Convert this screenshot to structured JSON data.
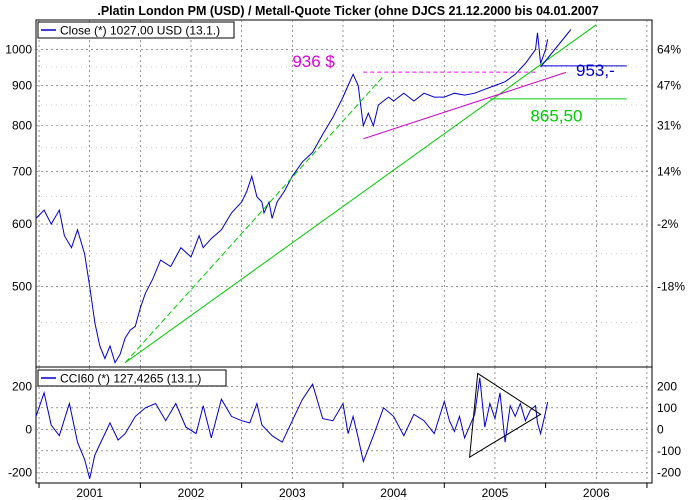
{
  "chart_data": [
    {
      "type": "line",
      "title": ".Platin London PM (USD) / Metall-Quote Ticker (ohne DJCS 21.12.2000 bis 04.01.2007",
      "legend": {
        "label": "Close (*) 1027,00 USD (13.1.)",
        "placement": "top-left"
      },
      "y_scale": "log",
      "ylim": [
        395,
        1090
      ],
      "y_ticks_left": [
        "1000",
        "900",
        "800",
        "700",
        "600",
        "500"
      ],
      "y_ticks_right": [
        "64%",
        "47%",
        "31%",
        "14%",
        "-2%",
        "-18%"
      ],
      "x_ticks": [
        "2001",
        "2002",
        "2003",
        "2004",
        "2005",
        "2006"
      ],
      "xlim": [
        2000.97,
        2007.05
      ],
      "grid": true,
      "series": [
        {
          "color": "#0000cc",
          "x": [
            2000.97,
            2001.05,
            2001.12,
            2001.2,
            2001.25,
            2001.32,
            2001.38,
            2001.45,
            2001.5,
            2001.55,
            2001.6,
            2001.65,
            2001.7,
            2001.75,
            2001.8,
            2001.85,
            2001.9,
            2001.95,
            2002.0,
            2002.05,
            2002.12,
            2002.2,
            2002.3,
            2002.4,
            2002.5,
            2002.58,
            2002.62,
            2002.7,
            2002.8,
            2002.9,
            2003.0,
            2003.05,
            2003.1,
            2003.15,
            2003.2,
            2003.22,
            2003.27,
            2003.3,
            2003.35,
            2003.42,
            2003.5,
            2003.6,
            2003.7,
            2003.8,
            2003.9,
            2004.0,
            2004.05,
            2004.1,
            2004.15,
            2004.2,
            2004.25,
            2004.3,
            2004.35,
            2004.4,
            2004.45,
            2004.5,
            2004.6,
            2004.7,
            2004.8,
            2004.9,
            2005.0,
            2005.1,
            2005.2,
            2005.3,
            2005.4,
            2005.5,
            2005.6,
            2005.7,
            2005.8,
            2005.9,
            2005.92,
            2005.95,
            2006.0,
            2006.02
          ],
          "values": [
            610,
            625,
            600,
            625,
            580,
            560,
            590,
            550,
            500,
            450,
            420,
            405,
            420,
            400,
            410,
            430,
            440,
            445,
            470,
            490,
            510,
            540,
            530,
            560,
            545,
            580,
            560,
            575,
            590,
            620,
            640,
            660,
            690,
            650,
            640,
            620,
            640,
            610,
            640,
            660,
            690,
            720,
            740,
            780,
            820,
            870,
            900,
            930,
            900,
            800,
            830,
            800,
            850,
            860,
            870,
            860,
            880,
            860,
            880,
            870,
            870,
            880,
            875,
            880,
            890,
            900,
            910,
            930,
            960,
            1000,
            1050,
            960,
            1000,
            1030
          ]
        },
        {
          "name_hidden": true,
          "color": "#00cc00",
          "x": [
            2001.85,
            2006.5
          ],
          "values": [
            400,
            1075
          ]
        },
        {
          "color": "#00cc00",
          "x": [
            2001.85,
            2004.4
          ],
          "values": [
            400,
            925
          ]
        },
        {
          "color": "#cc00cc",
          "x": [
            2004.2,
            2006.2
          ],
          "values": [
            770,
            935
          ]
        },
        {
          "color": "#0000cc",
          "x": [
            2005.95,
            2006.25
          ],
          "values": [
            950,
            1060
          ]
        }
      ],
      "hlines": [
        {
          "y": 936,
          "x": [
            2004.2,
            2005.92
          ],
          "color": "#ff00ff",
          "dashed": true
        },
        {
          "y": 953,
          "x": [
            2005.95,
            2006.8
          ],
          "color": "#0000cc"
        },
        {
          "y": 865.5,
          "x": [
            2005.45,
            2006.8
          ],
          "color": "#00cc00"
        }
      ],
      "annotations": [
        {
          "text": "936 $",
          "x": 2003.5,
          "y": 950,
          "color": "#dd00dd"
        },
        {
          "text": "953,-",
          "x": 2006.3,
          "y": 925,
          "color": "#0000cc"
        },
        {
          "text": "865,50",
          "x": 2005.85,
          "y": 810,
          "color": "#00cc00"
        }
      ]
    },
    {
      "type": "line",
      "legend": {
        "label": "CCI60 (*) 127,4265 (13.1.)",
        "placement": "top-left"
      },
      "ylim": [
        -250,
        290
      ],
      "y_ticks": [
        200,
        100,
        0,
        -100,
        -200
      ],
      "y_tick_labels_left": [
        "200",
        "",
        "0",
        "",
        "-200"
      ],
      "y_tick_labels_right": [
        "200",
        "100",
        "0",
        "-100",
        "-200"
      ],
      "xlim": [
        2000.97,
        2007.05
      ],
      "grid": true,
      "series": [
        {
          "color": "#0000cc",
          "x": [
            2000.97,
            2001.05,
            2001.12,
            2001.2,
            2001.3,
            2001.38,
            2001.45,
            2001.5,
            2001.55,
            2001.62,
            2001.7,
            2001.78,
            2001.85,
            2001.95,
            2002.05,
            2002.15,
            2002.25,
            2002.35,
            2002.45,
            2002.55,
            2002.62,
            2002.7,
            2002.8,
            2002.9,
            2003.0,
            2003.08,
            2003.15,
            2003.2,
            2003.3,
            2003.4,
            2003.5,
            2003.6,
            2003.7,
            2003.8,
            2003.9,
            2004.0,
            2004.05,
            2004.1,
            2004.15,
            2004.2,
            2004.3,
            2004.4,
            2004.5,
            2004.6,
            2004.7,
            2004.8,
            2004.9,
            2005.0,
            2005.05,
            2005.1,
            2005.15,
            2005.2,
            2005.3,
            2005.35,
            2005.4,
            2005.45,
            2005.5,
            2005.55,
            2005.6,
            2005.65,
            2005.7,
            2005.75,
            2005.8,
            2005.85,
            2005.9,
            2005.92,
            2005.95,
            2006.0,
            2006.02
          ],
          "values": [
            60,
            170,
            20,
            -30,
            120,
            -60,
            -140,
            -230,
            -120,
            -50,
            30,
            -50,
            -20,
            60,
            100,
            120,
            40,
            120,
            10,
            -20,
            110,
            -40,
            140,
            60,
            40,
            30,
            120,
            20,
            -30,
            -60,
            40,
            140,
            210,
            50,
            40,
            120,
            -20,
            60,
            -40,
            -150,
            -30,
            100,
            60,
            -30,
            70,
            40,
            -20,
            130,
            40,
            -10,
            60,
            -40,
            70,
            240,
            10,
            120,
            50,
            170,
            -60,
            110,
            60,
            120,
            40,
            90,
            110,
            30,
            -20,
            80,
            127
          ]
        }
      ],
      "triangle": {
        "color": "#000000",
        "points": [
          [
            2005.25,
            -130
          ],
          [
            2005.33,
            260
          ],
          [
            2005.95,
            70
          ]
        ]
      }
    }
  ]
}
